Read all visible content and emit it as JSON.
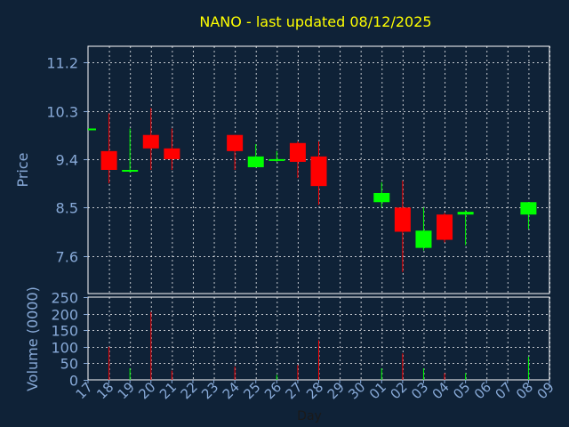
{
  "chart_data": [
    {
      "type": "candlestick",
      "title": "NANO - last updated 08/12/2025",
      "ylabel": "Price",
      "ylim": [
        6.9,
        11.5
      ],
      "yticks": [
        "11.2",
        "10.3",
        "9.4",
        "8.5",
        "7.6"
      ],
      "grid": true,
      "colors": {
        "up": "#00ff00",
        "down": "#ff0000",
        "title": "#ffff00",
        "text": "#88aad8",
        "grid": "#ffffff",
        "background": "#0f2237"
      },
      "candles": [
        {
          "day": "17",
          "open": 9.97,
          "high": 9.97,
          "low": 9.97,
          "close": 9.97
        },
        {
          "day": "18",
          "open": 9.55,
          "high": 10.25,
          "low": 8.95,
          "close": 9.2
        },
        {
          "day": "19",
          "open": 9.17,
          "high": 9.97,
          "low": 9.15,
          "close": 9.2
        },
        {
          "day": "20",
          "open": 9.85,
          "high": 10.35,
          "low": 9.2,
          "close": 9.6
        },
        {
          "day": "21",
          "open": 9.6,
          "high": 9.97,
          "low": 9.2,
          "close": 9.4
        },
        {
          "day": "24",
          "open": 9.85,
          "high": 9.85,
          "low": 9.2,
          "close": 9.55
        },
        {
          "day": "25",
          "open": 9.25,
          "high": 9.68,
          "low": 9.25,
          "close": 9.45
        },
        {
          "day": "26",
          "open": 9.37,
          "high": 9.55,
          "low": 9.35,
          "close": 9.4
        },
        {
          "day": "27",
          "open": 9.7,
          "high": 9.73,
          "low": 9.05,
          "close": 9.35
        },
        {
          "day": "28",
          "open": 9.45,
          "high": 9.73,
          "low": 8.55,
          "close": 8.9
        },
        {
          "day": "01",
          "open": 8.6,
          "high": 8.97,
          "low": 8.5,
          "close": 8.77
        },
        {
          "day": "02",
          "open": 8.5,
          "high": 9.0,
          "low": 7.3,
          "close": 8.05
        },
        {
          "day": "03",
          "open": 7.75,
          "high": 8.5,
          "low": 7.7,
          "close": 8.07
        },
        {
          "day": "04",
          "open": 8.37,
          "high": 8.4,
          "low": 7.85,
          "close": 7.9
        },
        {
          "day": "05",
          "open": 8.37,
          "high": 8.45,
          "low": 7.8,
          "close": 8.42
        },
        {
          "day": "08",
          "open": 8.37,
          "high": 8.6,
          "low": 8.1,
          "close": 8.6
        }
      ]
    },
    {
      "type": "bar",
      "ylabel": "Volume (0000)",
      "xlabel": "Day",
      "ylim": [
        0,
        250
      ],
      "yticks": [
        "250",
        "200",
        "150",
        "100",
        "50",
        "0"
      ],
      "grid": true,
      "categories": [
        "17",
        "18",
        "19",
        "20",
        "21",
        "22",
        "23",
        "24",
        "25",
        "26",
        "27",
        "28",
        "29",
        "30",
        "01",
        "02",
        "03",
        "04",
        "05",
        "06",
        "07",
        "08",
        "09"
      ],
      "values": [
        0,
        100,
        35,
        205,
        28,
        0,
        0,
        40,
        0,
        15,
        45,
        120,
        0,
        0,
        35,
        80,
        35,
        20,
        20,
        0,
        0,
        70,
        0
      ],
      "bar_colors": [
        "",
        "#ff0000",
        "#00ff00",
        "#ff0000",
        "#ff0000",
        "",
        "",
        "#ff0000",
        "",
        "#00ff00",
        "#ff0000",
        "#ff0000",
        "",
        "",
        "#00ff00",
        "#ff0000",
        "#00ff00",
        "#ff0000",
        "#00ff00",
        "",
        "",
        "#00ff00",
        ""
      ]
    }
  ]
}
